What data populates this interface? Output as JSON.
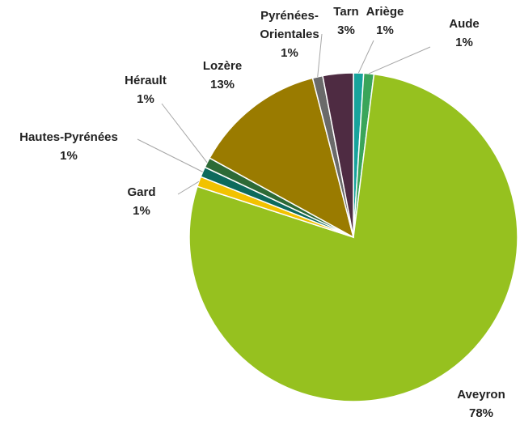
{
  "chart_data": {
    "type": "pie",
    "categories": [
      "Ariège",
      "Aude",
      "Aveyron",
      "Gard",
      "Hautes-Pyrénées",
      "Hérault",
      "Lozère",
      "Pyrénées-Orientales",
      "Tarn"
    ],
    "values": [
      1,
      1,
      78,
      1,
      1,
      1,
      13,
      1,
      3
    ],
    "value_labels": [
      "1%",
      "1%",
      "78%",
      "1%",
      "1%",
      "1%",
      "13%",
      "1%",
      "3%"
    ],
    "colors": [
      "#17a39c",
      "#3aa55a",
      "#96c11f",
      "#f2c200",
      "#0d6a5c",
      "#2d6a36",
      "#9a7b00",
      "#6a6a6a",
      "#4e2b42"
    ]
  }
}
